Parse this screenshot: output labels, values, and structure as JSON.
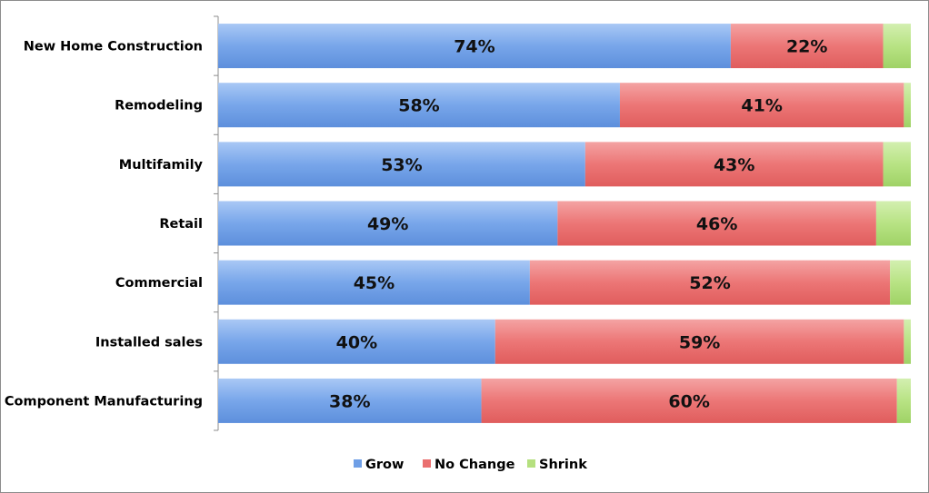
{
  "chart_data": {
    "type": "bar",
    "orientation": "horizontal",
    "stacked": true,
    "categories": [
      "New Home Construction",
      "Remodeling",
      "Multifamily",
      "Retail",
      "Commercial",
      "Installed sales",
      "Component Manufacturing"
    ],
    "series": [
      {
        "name": "Grow",
        "values": [
          74,
          58,
          53,
          49,
          45,
          40,
          38
        ],
        "labels": [
          "74%",
          "58%",
          "53%",
          "49%",
          "45%",
          "40%",
          "38%"
        ],
        "color": "#6f9fe6"
      },
      {
        "name": "No Change",
        "values": [
          22,
          41,
          43,
          46,
          52,
          59,
          60
        ],
        "labels": [
          "22%",
          "41%",
          "43%",
          "46%",
          "52%",
          "59%",
          "60%"
        ],
        "color": "#ea6f6f"
      },
      {
        "name": "Shrink",
        "values": [
          4,
          1,
          4,
          5,
          3,
          1,
          2
        ],
        "labels": [],
        "color": "#b5e07f"
      }
    ],
    "xlim": [
      0,
      100
    ],
    "grid": false,
    "legend_position": "bottom"
  }
}
